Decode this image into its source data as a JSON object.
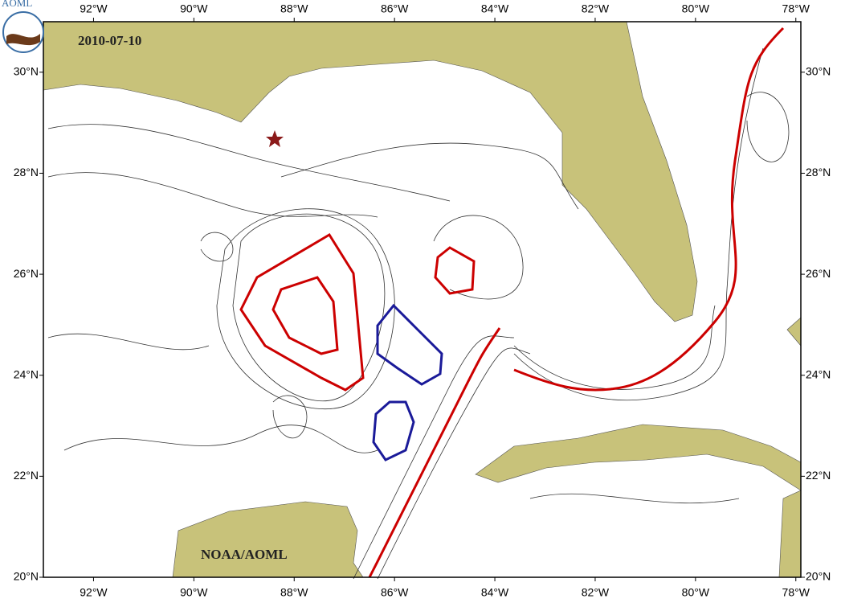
{
  "logo": "AOML",
  "date": "2010-07-10",
  "credit": "NOAA/AOML",
  "lon_ticks": [
    {
      "value": -92,
      "label": "92°W"
    },
    {
      "value": -90,
      "label": "90°W"
    },
    {
      "value": -88,
      "label": "88°W"
    },
    {
      "value": -86,
      "label": "86°W"
    },
    {
      "value": -84,
      "label": "84°W"
    },
    {
      "value": -82,
      "label": "82°W"
    },
    {
      "value": -80,
      "label": "80°W"
    },
    {
      "value": -78,
      "label": "78°W"
    }
  ],
  "lat_ticks": [
    {
      "value": 30,
      "label": "30°N"
    },
    {
      "value": 28,
      "label": "28°N"
    },
    {
      "value": 26,
      "label": "26°N"
    },
    {
      "value": 24,
      "label": "24°N"
    },
    {
      "value": 22,
      "label": "22°N"
    },
    {
      "value": 20,
      "label": "20°N"
    }
  ]
}
